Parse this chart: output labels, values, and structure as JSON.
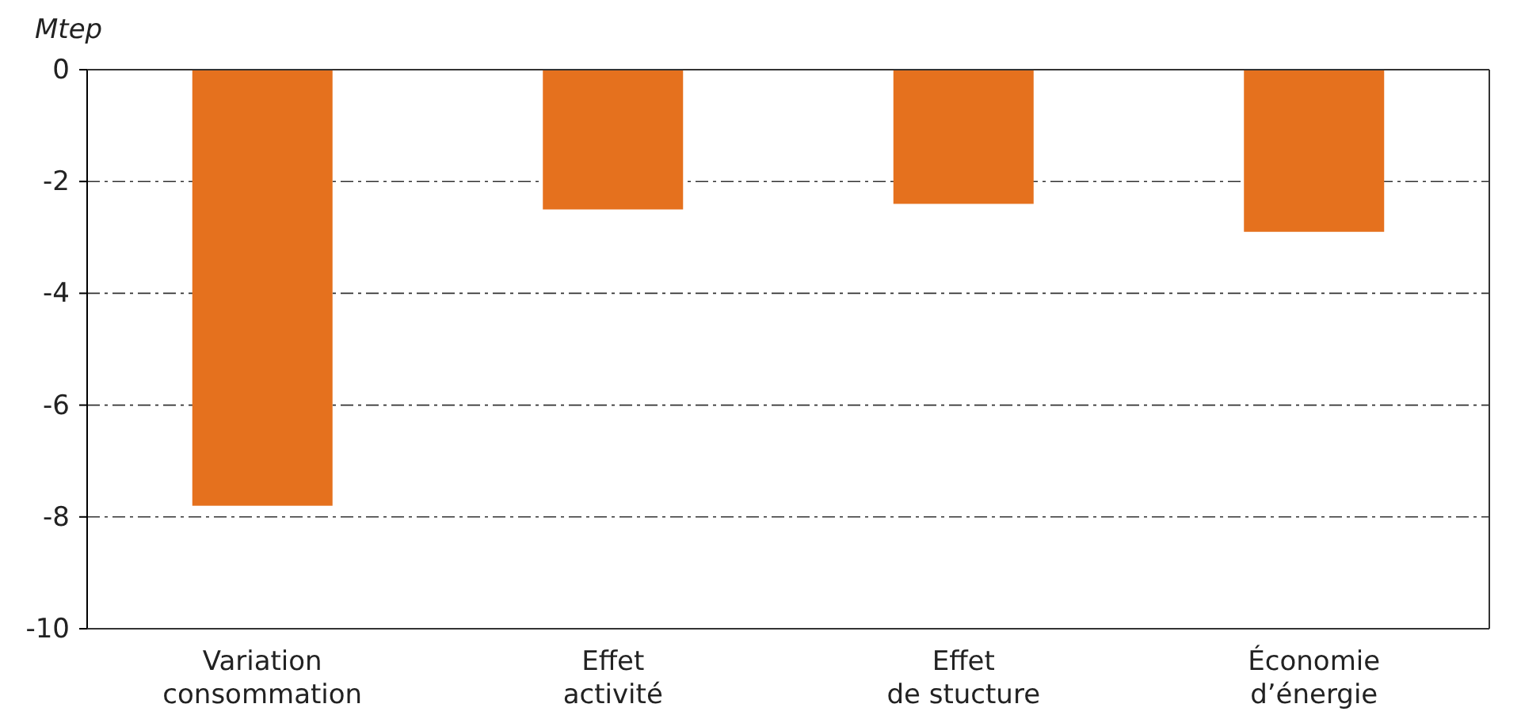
{
  "chart_data": {
    "type": "bar",
    "ylabel": "Mtep",
    "categories": [
      "Variation\nconsommation",
      "Effet\nactivité",
      "Effet\nde stucture",
      "Économie\nd’énergie"
    ],
    "values": [
      -7.8,
      -2.5,
      -2.4,
      -2.9
    ],
    "color": "#e5711e",
    "ylim": [
      -10,
      0
    ],
    "yticks": [
      -10,
      -8,
      -6,
      -4,
      -2,
      0
    ],
    "grid": "y"
  }
}
